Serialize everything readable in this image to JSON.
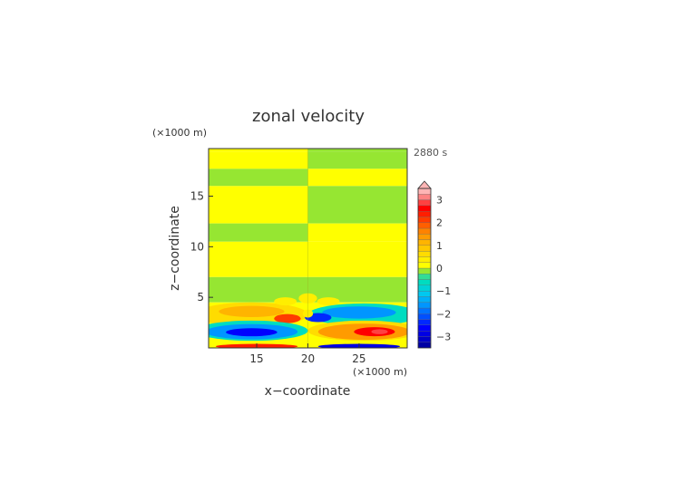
{
  "chart_data": {
    "type": "heatmap",
    "title": "zonal velocity",
    "time_label": "2880 s",
    "xlabel": "x−coordinate",
    "ylabel": "z−coordinate",
    "x_unit": "(×1000 m)",
    "y_unit": "(×1000 m)",
    "xlim": [
      10.3,
      29.7
    ],
    "ylim": [
      0,
      19.7
    ],
    "x_ticks": [
      15,
      20,
      25
    ],
    "y_ticks": [
      5,
      10,
      15
    ],
    "colorbar": {
      "ticks": [
        3,
        2,
        1,
        0,
        -1,
        -2,
        -3
      ],
      "range": [
        -3.5,
        3.5
      ],
      "step": 0.25,
      "extend": "both"
    },
    "regions": [
      {
        "x": [
          10.3,
          20
        ],
        "z": [
          19.4,
          19.7
        ],
        "value": 0.3
      },
      {
        "x": [
          20,
          29.7
        ],
        "z": [
          19.4,
          19.7
        ],
        "value": 0.1
      },
      {
        "x": [
          10.3,
          20
        ],
        "z": [
          17.7,
          19.4
        ],
        "value": 0.15
      },
      {
        "x": [
          20,
          29.7
        ],
        "z": [
          17.7,
          19.4
        ],
        "value": -0.1
      },
      {
        "x": [
          10.3,
          20
        ],
        "z": [
          16,
          17.7
        ],
        "value": -0.1
      },
      {
        "x": [
          20,
          29.7
        ],
        "z": [
          16,
          17.7
        ],
        "value": 0.15
      },
      {
        "x": [
          10.3,
          20
        ],
        "z": [
          12.3,
          16
        ],
        "value": 0.15
      },
      {
        "x": [
          20,
          29.7
        ],
        "z": [
          12.3,
          16
        ],
        "value": -0.1
      },
      {
        "x": [
          10.3,
          20
        ],
        "z": [
          10.5,
          12.3
        ],
        "value": -0.1
      },
      {
        "x": [
          20,
          29.7
        ],
        "z": [
          10.5,
          12.3
        ],
        "value": 0.15
      },
      {
        "x": [
          10.3,
          29.7
        ],
        "z": [
          7,
          10.5
        ],
        "value": 0.15
      },
      {
        "x": [
          10.3,
          29.7
        ],
        "z": [
          4.5,
          7
        ],
        "value": -0.1
      },
      {
        "x": [
          10.3,
          29.7
        ],
        "z": [
          0,
          4.5
        ],
        "value": 0.15
      }
    ],
    "features": [
      {
        "cx": 14.5,
        "cz": 3.3,
        "rx": 5.5,
        "rz": 1.2,
        "value": 0.8
      },
      {
        "cx": 14.5,
        "cz": 3.6,
        "rx": 3.2,
        "rz": 0.55,
        "value": 1.3
      },
      {
        "cx": 18.0,
        "cz": 2.9,
        "rx": 1.3,
        "rz": 0.45,
        "value": 2.2
      },
      {
        "cx": 14.5,
        "cz": 1.7,
        "rx": 5.5,
        "rz": 1.0,
        "value": -0.6
      },
      {
        "cx": 14.5,
        "cz": 1.6,
        "rx": 4.5,
        "rz": 0.75,
        "value": -1.6
      },
      {
        "cx": 14.5,
        "cz": 1.55,
        "rx": 2.5,
        "rz": 0.4,
        "value": -2.4
      },
      {
        "cx": 25.5,
        "cz": 3.3,
        "rx": 5.5,
        "rz": 1.1,
        "value": -0.6
      },
      {
        "cx": 25.0,
        "cz": 3.5,
        "rx": 3.6,
        "rz": 0.6,
        "value": -1.5
      },
      {
        "cx": 21.0,
        "cz": 3.0,
        "rx": 1.3,
        "rz": 0.45,
        "value": -2.3
      },
      {
        "cx": 25.5,
        "cz": 1.7,
        "rx": 5.5,
        "rz": 1.0,
        "value": 0.7
      },
      {
        "cx": 25.5,
        "cz": 1.6,
        "rx": 4.5,
        "rz": 0.8,
        "value": 1.6
      },
      {
        "cx": 26.5,
        "cz": 1.6,
        "rx": 2.0,
        "rz": 0.45,
        "value": 2.7
      },
      {
        "cx": 27.0,
        "cz": 1.6,
        "rx": 0.8,
        "rz": 0.25,
        "value": 3.1
      },
      {
        "cx": 20.0,
        "cz": 4.9,
        "rx": 0.9,
        "rz": 0.5,
        "value": 0.5
      },
      {
        "cx": 17.8,
        "cz": 4.6,
        "rx": 1.1,
        "rz": 0.4,
        "value": 0.5
      },
      {
        "cx": 22.0,
        "cz": 4.6,
        "rx": 1.1,
        "rz": 0.4,
        "value": 0.5
      },
      {
        "cx": 20.0,
        "cz": 3.4,
        "rx": 0.5,
        "rz": 0.4,
        "value": 0.5
      },
      {
        "cx": 15.0,
        "cz": 0.15,
        "rx": 4.0,
        "rz": 0.25,
        "value": 2.6
      },
      {
        "cx": 25.0,
        "cz": 0.15,
        "rx": 4.0,
        "rz": 0.25,
        "value": -2.8
      }
    ]
  }
}
